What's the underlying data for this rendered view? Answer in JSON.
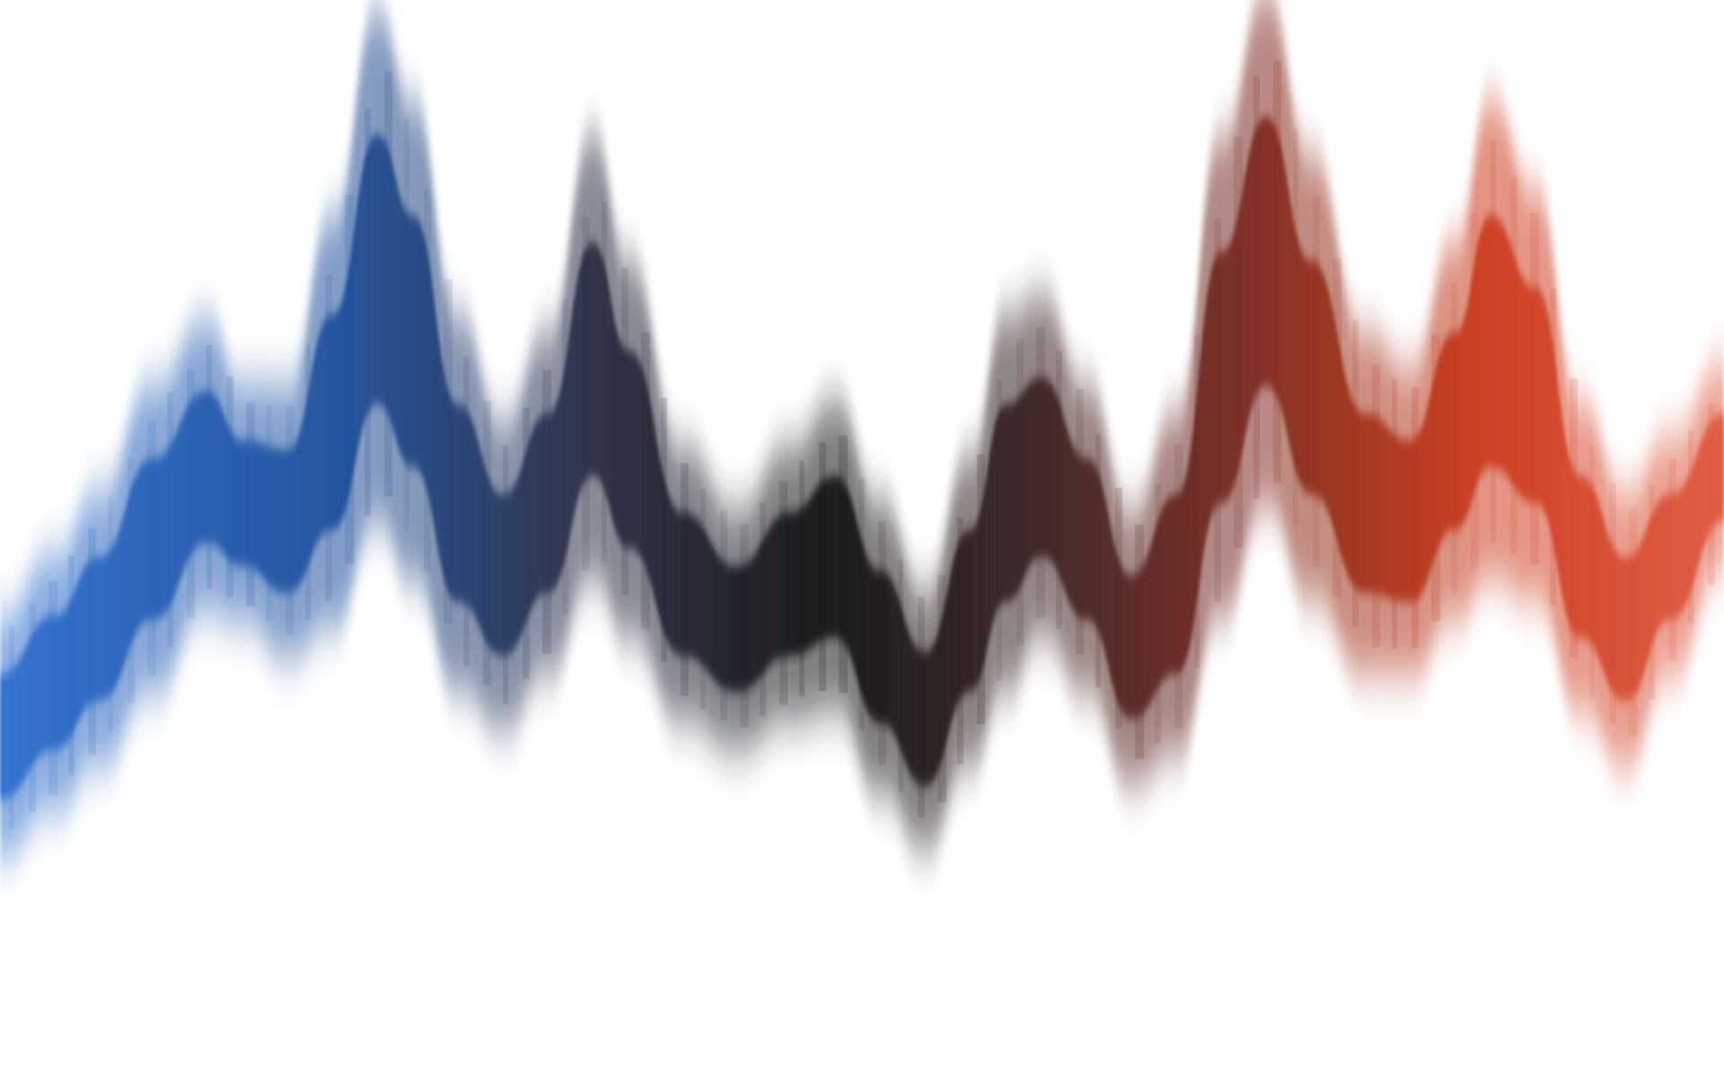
{
  "artwork": {
    "subject": "wave-abstract",
    "palette": [
      "#2f6fd0",
      "#1f4f9a",
      "#2b2f45",
      "#151515",
      "#3a2424",
      "#7a2a20",
      "#cc3b1e",
      "#e05a40"
    ]
  }
}
